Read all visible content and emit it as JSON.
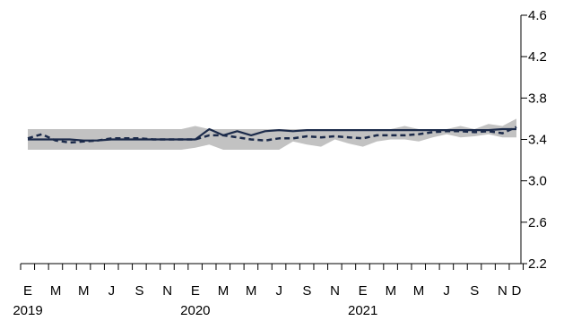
{
  "chart_data": {
    "type": "line",
    "colors": {
      "band": "#c2c2c2",
      "solid_line": "#1b2a4a",
      "dashed_line": "#1b2a4a",
      "axis": "#000000"
    },
    "x_tick_labels": [
      "E",
      "M",
      "M",
      "J",
      "S",
      "N",
      "E",
      "M",
      "M",
      "J",
      "S",
      "N",
      "E",
      "M",
      "M",
      "J",
      "S",
      "N",
      "D"
    ],
    "x_tick_months": [
      0,
      2,
      4,
      6,
      8,
      10,
      12,
      14,
      16,
      18,
      20,
      22,
      24,
      26,
      28,
      30,
      32,
      34,
      35
    ],
    "year_labels": [
      {
        "month": 0,
        "label": "2019"
      },
      {
        "month": 12,
        "label": "2020"
      },
      {
        "month": 24,
        "label": "2021"
      }
    ],
    "ylim": [
      2.2,
      4.6
    ],
    "y_ticks": [
      "2.2",
      "2.6",
      "3.0",
      "3.4",
      "3.8",
      "4.2",
      "4.6"
    ],
    "y_axis_position": "right",
    "grid": false,
    "band": {
      "lower": [
        3.3,
        3.3,
        3.3,
        3.3,
        3.3,
        3.3,
        3.3,
        3.3,
        3.3,
        3.3,
        3.3,
        3.3,
        3.32,
        3.35,
        3.3,
        3.3,
        3.3,
        3.3,
        3.3,
        3.38,
        3.35,
        3.33,
        3.4,
        3.36,
        3.33,
        3.38,
        3.4,
        3.4,
        3.38,
        3.42,
        3.45,
        3.42,
        3.43,
        3.45,
        3.42,
        3.42
      ],
      "upper": [
        3.5,
        3.5,
        3.5,
        3.5,
        3.5,
        3.5,
        3.5,
        3.5,
        3.5,
        3.5,
        3.5,
        3.5,
        3.53,
        3.5,
        3.5,
        3.5,
        3.5,
        3.5,
        3.5,
        3.5,
        3.5,
        3.5,
        3.5,
        3.5,
        3.5,
        3.5,
        3.5,
        3.53,
        3.5,
        3.5,
        3.5,
        3.53,
        3.5,
        3.55,
        3.53,
        3.6
      ]
    },
    "series": [
      {
        "style": "solid",
        "values": [
          3.4,
          3.4,
          3.4,
          3.4,
          3.39,
          3.39,
          3.4,
          3.4,
          3.4,
          3.4,
          3.4,
          3.4,
          3.4,
          3.5,
          3.44,
          3.48,
          3.44,
          3.48,
          3.49,
          3.48,
          3.49,
          3.49,
          3.49,
          3.49,
          3.49,
          3.49,
          3.49,
          3.49,
          3.49,
          3.49,
          3.49,
          3.49,
          3.49,
          3.49,
          3.5,
          3.5
        ]
      },
      {
        "style": "dashed",
        "values": [
          3.41,
          3.45,
          3.39,
          3.37,
          3.38,
          3.39,
          3.41,
          3.41,
          3.41,
          3.4,
          3.4,
          3.4,
          3.4,
          3.44,
          3.44,
          3.42,
          3.4,
          3.39,
          3.41,
          3.41,
          3.43,
          3.42,
          3.43,
          3.42,
          3.41,
          3.44,
          3.44,
          3.44,
          3.45,
          3.47,
          3.48,
          3.48,
          3.47,
          3.48,
          3.46,
          3.52
        ]
      }
    ]
  }
}
